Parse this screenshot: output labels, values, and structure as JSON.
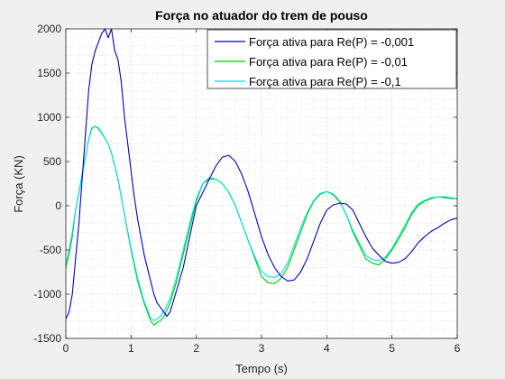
{
  "chart_data": {
    "type": "line",
    "title": "Força no atuador do trem de pouso",
    "xlabel": "Tempo (s)",
    "ylabel": "Força (KN)",
    "xlim": [
      0,
      6
    ],
    "ylim": [
      -1500,
      2000
    ],
    "xticks": [
      0,
      1,
      2,
      3,
      4,
      5,
      6
    ],
    "yticks": [
      -1500,
      -1000,
      -500,
      0,
      500,
      1000,
      1500,
      2000
    ],
    "xtick_labels": [
      "0",
      "1",
      "2",
      "3",
      "4",
      "5",
      "6"
    ],
    "ytick_labels": [
      "-1500",
      "-1000",
      "-500",
      "0",
      "500",
      "1000",
      "1500",
      "2000"
    ],
    "grid": "dotted major and minor",
    "legend_position": "top-right",
    "series": [
      {
        "name": "Força ativa para Re(P) = -0,001",
        "color": "#0000cc",
        "x": [
          0,
          0.05,
          0.1,
          0.15,
          0.2,
          0.25,
          0.3,
          0.35,
          0.4,
          0.45,
          0.5,
          0.55,
          0.6,
          0.65,
          0.7,
          0.75,
          0.8,
          0.85,
          0.9,
          0.95,
          1.0,
          1.05,
          1.1,
          1.15,
          1.2,
          1.25,
          1.3,
          1.35,
          1.4,
          1.45,
          1.5,
          1.55,
          1.6,
          1.7,
          1.8,
          1.9,
          2.0,
          2.1,
          2.2,
          2.3,
          2.4,
          2.5,
          2.6,
          2.7,
          2.8,
          2.9,
          3.0,
          3.1,
          3.2,
          3.3,
          3.4,
          3.5,
          3.6,
          3.7,
          3.8,
          3.9,
          4.0,
          4.1,
          4.2,
          4.3,
          4.4,
          4.5,
          4.6,
          4.7,
          4.8,
          4.9,
          5.0,
          5.1,
          5.2,
          5.3,
          5.4,
          5.5,
          5.6,
          5.7,
          5.8,
          5.9,
          6.0
        ],
        "y": [
          -1280,
          -1200,
          -1000,
          -600,
          -200,
          300,
          800,
          1300,
          1600,
          1750,
          1850,
          1950,
          2000,
          1900,
          2000,
          1750,
          1650,
          1400,
          1000,
          700,
          400,
          100,
          -150,
          -350,
          -550,
          -700,
          -850,
          -1000,
          -1100,
          -1150,
          -1200,
          -1250,
          -1200,
          -950,
          -700,
          -350,
          0,
          150,
          300,
          450,
          550,
          570,
          500,
          350,
          150,
          -100,
          -350,
          -550,
          -700,
          -800,
          -850,
          -840,
          -750,
          -600,
          -400,
          -200,
          -50,
          10,
          30,
          20,
          -50,
          -200,
          -350,
          -480,
          -560,
          -630,
          -650,
          -640,
          -600,
          -520,
          -420,
          -350,
          -290,
          -250,
          -200,
          -160,
          -140
        ]
      },
      {
        "name": "Força ativa para Re(P) = -0,01",
        "color": "#00cc00",
        "x": [
          0,
          0.05,
          0.1,
          0.15,
          0.2,
          0.25,
          0.3,
          0.35,
          0.4,
          0.45,
          0.5,
          0.55,
          0.6,
          0.65,
          0.7,
          0.75,
          0.8,
          0.9,
          1.0,
          1.1,
          1.2,
          1.3,
          1.35,
          1.4,
          1.45,
          1.5,
          1.6,
          1.7,
          1.8,
          1.9,
          2.0,
          2.1,
          2.2,
          2.3,
          2.4,
          2.5,
          2.6,
          2.7,
          2.8,
          2.9,
          3.0,
          3.1,
          3.2,
          3.3,
          3.4,
          3.5,
          3.6,
          3.7,
          3.8,
          3.9,
          4.0,
          4.1,
          4.2,
          4.3,
          4.4,
          4.5,
          4.6,
          4.7,
          4.8,
          4.9,
          5.0,
          5.1,
          5.2,
          5.3,
          5.4,
          5.5,
          5.6,
          5.7,
          5.8,
          5.9,
          6.0
        ],
        "y": [
          -700,
          -550,
          -350,
          -50,
          150,
          350,
          550,
          750,
          880,
          900,
          870,
          820,
          760,
          700,
          600,
          450,
          300,
          -100,
          -500,
          -850,
          -1100,
          -1300,
          -1350,
          -1320,
          -1300,
          -1260,
          -1100,
          -850,
          -550,
          -250,
          50,
          250,
          300,
          300,
          250,
          150,
          0,
          -200,
          -400,
          -600,
          -800,
          -870,
          -880,
          -820,
          -700,
          -500,
          -300,
          -100,
          50,
          130,
          160,
          130,
          50,
          -100,
          -300,
          -450,
          -600,
          -650,
          -670,
          -600,
          -500,
          -380,
          -250,
          -100,
          0,
          50,
          80,
          100,
          100,
          90,
          80
        ]
      },
      {
        "name": "Força ativa para Re(P) = -0,1",
        "color": "#00e0e0",
        "x": [
          0,
          0.05,
          0.1,
          0.15,
          0.2,
          0.25,
          0.3,
          0.35,
          0.4,
          0.45,
          0.5,
          0.55,
          0.6,
          0.65,
          0.7,
          0.75,
          0.8,
          0.9,
          1.0,
          1.1,
          1.2,
          1.3,
          1.35,
          1.4,
          1.45,
          1.5,
          1.6,
          1.7,
          1.8,
          1.9,
          2.0,
          2.1,
          2.2,
          2.3,
          2.4,
          2.5,
          2.6,
          2.7,
          2.8,
          2.9,
          3.0,
          3.1,
          3.2,
          3.3,
          3.4,
          3.5,
          3.6,
          3.7,
          3.8,
          3.9,
          4.0,
          4.1,
          4.2,
          4.3,
          4.4,
          4.5,
          4.6,
          4.7,
          4.8,
          4.9,
          5.0,
          5.1,
          5.2,
          5.3,
          5.4,
          5.5,
          5.6,
          5.7,
          5.8,
          5.9,
          6.0
        ],
        "y": [
          -680,
          -500,
          -300,
          -50,
          150,
          350,
          550,
          750,
          870,
          900,
          880,
          830,
          760,
          700,
          600,
          450,
          300,
          -100,
          -480,
          -820,
          -1080,
          -1270,
          -1300,
          -1280,
          -1250,
          -1200,
          -1050,
          -800,
          -500,
          -200,
          80,
          250,
          320,
          300,
          250,
          150,
          0,
          -200,
          -400,
          -580,
          -740,
          -800,
          -810,
          -770,
          -650,
          -450,
          -250,
          -80,
          60,
          140,
          160,
          120,
          40,
          -100,
          -280,
          -420,
          -560,
          -610,
          -620,
          -580,
          -480,
          -350,
          -220,
          -80,
          20,
          60,
          90,
          100,
          90,
          80,
          80
        ]
      }
    ]
  }
}
